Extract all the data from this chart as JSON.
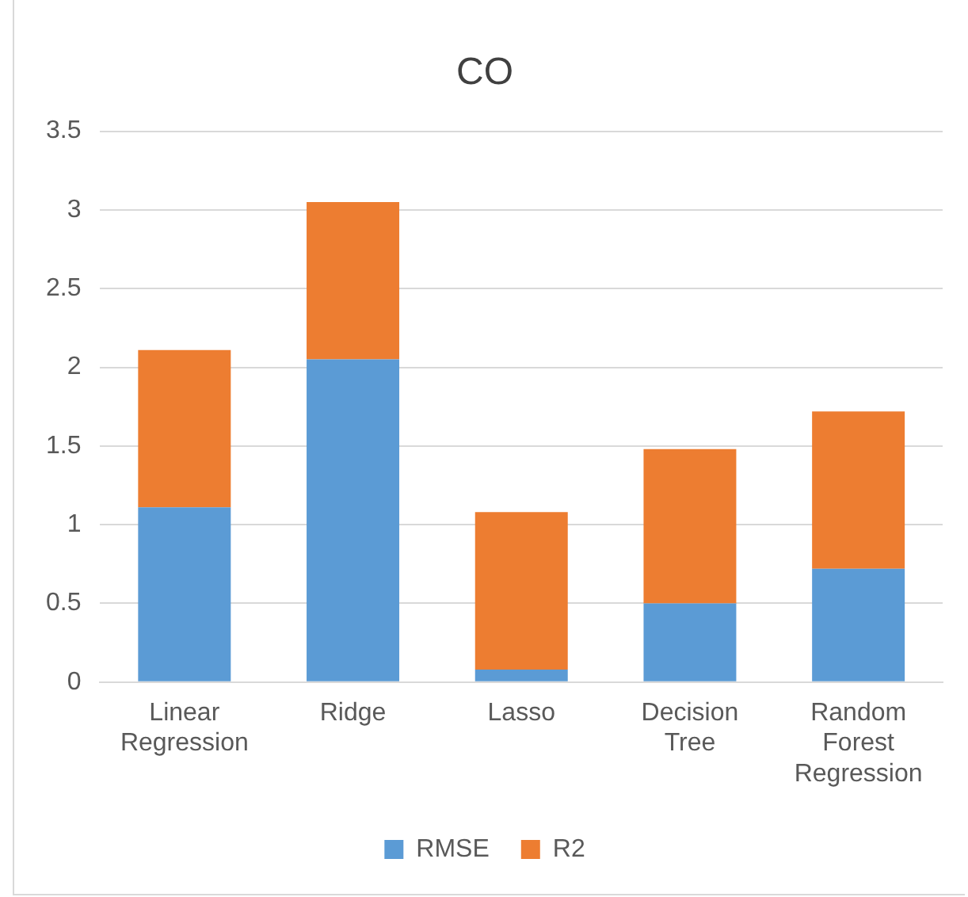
{
  "chart_data": {
    "type": "bar",
    "title": "CO",
    "stacked": true,
    "categories": [
      "Linear Regression",
      "Ridge",
      "Lasso",
      "Decision Tree",
      "Random Forest Regression"
    ],
    "series": [
      {
        "name": "RMSE",
        "color": "#5b9bd5",
        "values": [
          1.11,
          2.05,
          0.08,
          0.5,
          0.72
        ]
      },
      {
        "name": "R2",
        "color": "#ed7d31",
        "values": [
          1.0,
          1.0,
          1.0,
          0.98,
          1.0
        ]
      }
    ],
    "ylim": [
      0,
      3.5
    ],
    "yticks": [
      0,
      0.5,
      1,
      1.5,
      2,
      2.5,
      3,
      3.5
    ],
    "grid": "y",
    "legend": "bottom"
  }
}
